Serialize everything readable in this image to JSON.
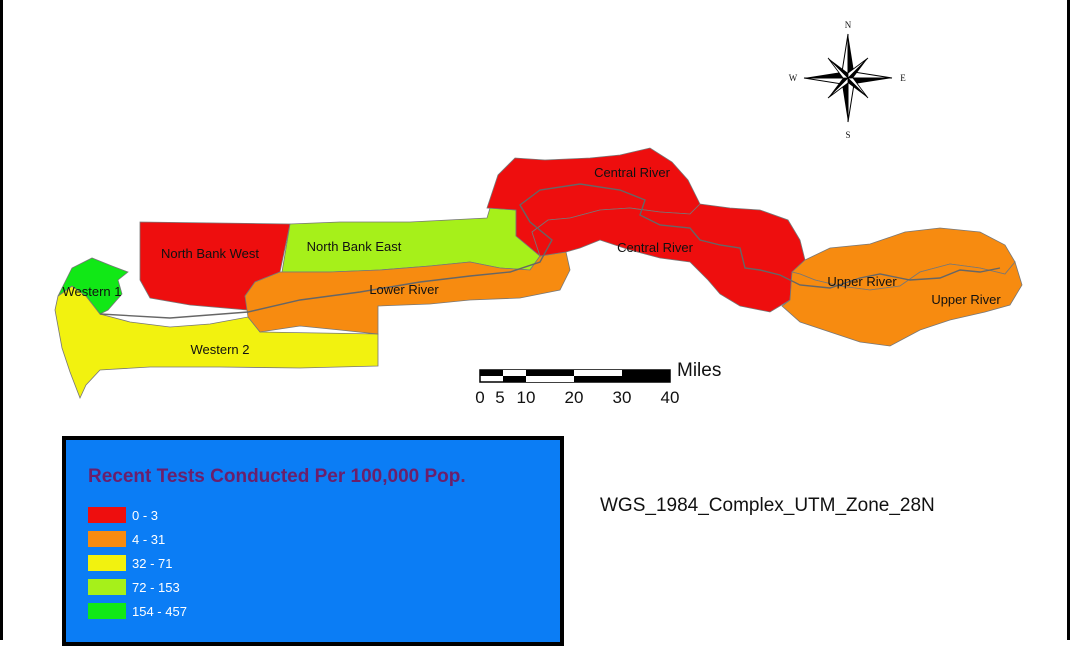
{
  "regions": [
    {
      "id": "north-bank-west",
      "label": "North Bank West",
      "color": "#ee0e0e"
    },
    {
      "id": "north-bank-east",
      "label": "North Bank East",
      "color": "#a6f01a"
    },
    {
      "id": "western-1",
      "label": "Western 1",
      "color": "#11e816"
    },
    {
      "id": "western-2",
      "label": "Western 2",
      "color": "#f2f20f"
    },
    {
      "id": "lower-river",
      "label": "Lower River",
      "color": "#f78b10"
    },
    {
      "id": "central-river-north",
      "label": "Central River",
      "color": "#ee0e0e"
    },
    {
      "id": "central-river-south",
      "label": "Central River",
      "color": "#ee0e0e"
    },
    {
      "id": "upper-river-north",
      "label": "Upper River",
      "color": "#f78b10"
    },
    {
      "id": "upper-river-south",
      "label": "Upper River",
      "color": "#f78b10"
    }
  ],
  "compass": {
    "north": "N",
    "south": "S",
    "east": "E",
    "west": "W",
    "icon": "compass-rose-icon"
  },
  "scale_bar": {
    "ticks": [
      "0",
      "5",
      "10",
      "20",
      "30",
      "40"
    ],
    "units": "Miles"
  },
  "projection": "WGS_1984_Complex_UTM_Zone_28N",
  "legend": {
    "title": "Recent Tests Conducted Per 100,000 Pop.",
    "background": "#0b7df5",
    "title_color": "#6b1f6b",
    "classes": [
      {
        "label": "0 - 3",
        "color": "#ee0e0e"
      },
      {
        "label": "4 - 31",
        "color": "#f78b10"
      },
      {
        "label": "32 - 71",
        "color": "#f2f20f"
      },
      {
        "label": "72 - 153",
        "color": "#a6f01a"
      },
      {
        "label": "154 - 457",
        "color": "#11e816"
      }
    ]
  }
}
